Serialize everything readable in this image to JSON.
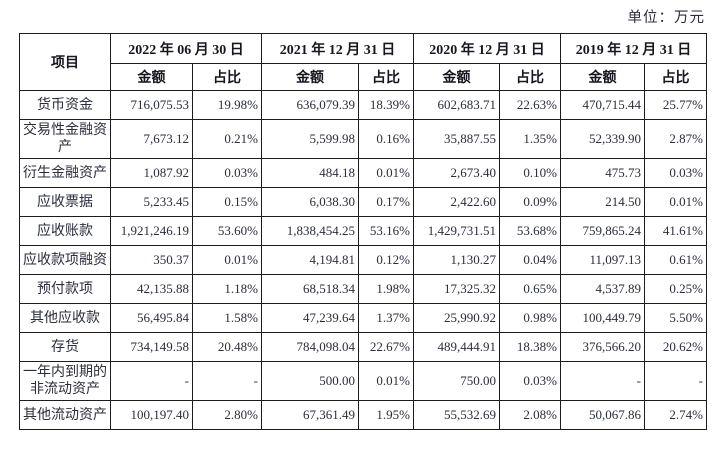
{
  "unit_label": "单位：万元",
  "table": {
    "item_header": "项目",
    "groups": [
      {
        "date": "2022 年 06 月 30 日",
        "amount": "金额",
        "ratio": "占比"
      },
      {
        "date": "2021 年 12 月 31 日",
        "amount": "金额",
        "ratio": "占比"
      },
      {
        "date": "2020 年 12 月 31 日",
        "amount": "金额",
        "ratio": "占比"
      },
      {
        "date": "2019 年 12 月 31 日",
        "amount": "金额",
        "ratio": "占比"
      }
    ],
    "rows": [
      {
        "item": "货币资金",
        "values": [
          "716,075.53",
          "19.98%",
          "636,079.39",
          "18.39%",
          "602,683.71",
          "22.63%",
          "470,715.44",
          "25.77%"
        ]
      },
      {
        "item": "交易性金融资产",
        "values": [
          "7,673.12",
          "0.21%",
          "5,599.98",
          "0.16%",
          "35,887.55",
          "1.35%",
          "52,339.90",
          "2.87%"
        ]
      },
      {
        "item": "衍生金融资产",
        "values": [
          "1,087.92",
          "0.03%",
          "484.18",
          "0.01%",
          "2,673.40",
          "0.10%",
          "475.73",
          "0.03%"
        ]
      },
      {
        "item": "应收票据",
        "values": [
          "5,233.45",
          "0.15%",
          "6,038.30",
          "0.17%",
          "2,422.60",
          "0.09%",
          "214.50",
          "0.01%"
        ]
      },
      {
        "item": "应收账款",
        "values": [
          "1,921,246.19",
          "53.60%",
          "1,838,454.25",
          "53.16%",
          "1,429,731.51",
          "53.68%",
          "759,865.24",
          "41.61%"
        ]
      },
      {
        "item": "应收款项融资",
        "values": [
          "350.37",
          "0.01%",
          "4,194.81",
          "0.12%",
          "1,130.27",
          "0.04%",
          "11,097.13",
          "0.61%"
        ]
      },
      {
        "item": "预付款项",
        "values": [
          "42,135.88",
          "1.18%",
          "68,518.34",
          "1.98%",
          "17,325.32",
          "0.65%",
          "4,537.89",
          "0.25%"
        ]
      },
      {
        "item": "其他应收款",
        "values": [
          "56,495.84",
          "1.58%",
          "47,239.64",
          "1.37%",
          "25,990.92",
          "0.98%",
          "100,449.79",
          "5.50%"
        ]
      },
      {
        "item": "存货",
        "values": [
          "734,149.58",
          "20.48%",
          "784,098.04",
          "22.67%",
          "489,444.91",
          "18.38%",
          "376,566.20",
          "20.62%"
        ]
      },
      {
        "item": "一年内到期的非流动资产",
        "values": [
          "-",
          "-",
          "500.00",
          "0.01%",
          "750.00",
          "0.03%",
          "-",
          "-"
        ]
      },
      {
        "item": "其他流动资产",
        "values": [
          "100,197.40",
          "2.80%",
          "67,361.49",
          "1.95%",
          "55,532.69",
          "2.08%",
          "50,067.86",
          "2.74%"
        ]
      }
    ]
  },
  "colors": {
    "text": "#2a2e3d",
    "border": "#1c1c1c",
    "background": "#ffffff"
  }
}
